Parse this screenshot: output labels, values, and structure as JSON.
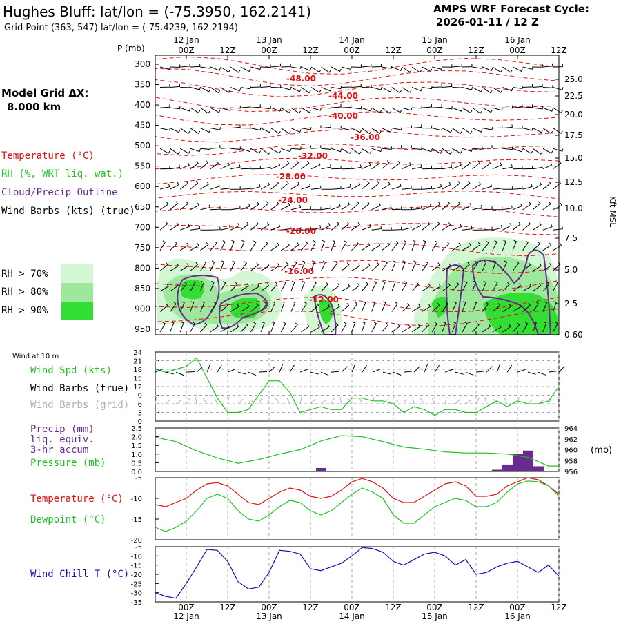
{
  "header": {
    "station_title": "Hughes Bluff:  lat/lon = (-75.3950, 162.2141)",
    "grid_point": "Grid Point (363, 547) lat/lon = (-75.4239, 162.2194)",
    "forecast_label": "AMPS WRF Forecast Cycle:",
    "cycle": "2026-01-11 / 12  Z"
  },
  "model_grid": {
    "label": "Model Grid ΔX:",
    "value": "8.000 km"
  },
  "time_axis": {
    "hour_labels": [
      "00Z",
      "12Z",
      "00Z",
      "12Z",
      "00Z",
      "12Z",
      "00Z",
      "12Z",
      "00Z",
      "12Z"
    ],
    "date_labels": [
      "12 Jan",
      "13 Jan",
      "14 Jan",
      "15 Jan",
      "16 Jan"
    ]
  },
  "colors": {
    "temperature": "#e01010",
    "rh": "#20c020",
    "cloud": "#6a2a90",
    "wind": "#000000",
    "wind_grid": "#b0b0b0",
    "pressure": "#20c020",
    "wind_chill": "#1010b0",
    "precip": "#6a2a90",
    "rh70": "#d2f7d2",
    "rh80": "#9ee89e",
    "rh90": "#33dd33"
  },
  "cross_section": {
    "ylabel": "P (mb)",
    "pressure_levels": [
      "300",
      "350",
      "400",
      "450",
      "500",
      "550",
      "600",
      "650",
      "700",
      "750",
      "800",
      "850",
      "900",
      "950"
    ],
    "height_label": "Kft MSL",
    "height_ticks": [
      "25.0",
      "22.5",
      "20.0",
      "17.5",
      "15.0",
      "12.5",
      "10.0",
      "7.5",
      "5.0",
      "2.5",
      "0.60"
    ],
    "temperature_labels": [
      "-48.00",
      "-44.00",
      "-40.00",
      "-36.00",
      "-32.00",
      "-28.00",
      "-24.00",
      "-20.00",
      "-16.00",
      "-12.00"
    ],
    "legend": {
      "temperature": "Temperature (°C)",
      "rh": "RH (%, WRT liq. wat.)",
      "cloud": "Cloud/Precip Outline",
      "wind": "Wind Barbs (kts) (true)",
      "rh70": "RH > 70%",
      "rh80": "RH > 80%",
      "rh90": "RH > 90%"
    }
  },
  "chart_data": [
    {
      "type": "line",
      "name": "wind10m",
      "title": "Wind at 10 m",
      "yticks": [
        "24",
        "21",
        "18",
        "15",
        "12",
        "9",
        "6",
        "3",
        "0"
      ],
      "ylim": [
        0,
        24
      ],
      "legend": {
        "speed": "Wind Spd (kts)",
        "barbs_true": "Wind Barbs (true)",
        "barbs_grid": "Wind Barbs (grid)"
      },
      "x_hours": [
        0,
        3,
        6,
        9,
        12,
        15,
        18,
        21,
        24,
        27,
        30,
        33,
        36,
        39,
        42,
        45,
        48,
        51,
        54,
        57,
        60,
        63,
        66,
        69,
        72,
        75,
        78,
        81,
        84,
        87,
        90,
        93,
        96,
        99,
        102,
        105,
        108,
        111,
        114,
        117
      ],
      "series": [
        {
          "values": [
            18,
            17,
            18,
            19,
            22,
            15,
            8,
            3,
            3,
            4,
            9,
            14,
            14,
            10,
            3,
            4,
            5,
            4,
            4,
            8,
            8,
            7,
            7,
            6,
            3,
            5,
            4,
            2,
            4,
            4,
            3,
            3,
            5,
            7,
            5,
            7,
            6,
            6,
            7,
            12
          ]
        }
      ]
    },
    {
      "type": "bar",
      "name": "precip",
      "legend": {
        "precip": "Precip (mm)",
        "liq": "liq. equiv.",
        "accum": "3-hr accum",
        "pressure": "Pressure (mb)"
      },
      "yticks_left": [
        "2.5",
        "2.0",
        "1.5",
        "1.0",
        "0.5",
        "0.0"
      ],
      "ylim": [
        0,
        2.5
      ],
      "yticks_right": [
        "964",
        "962",
        "960",
        "958",
        "956"
      ],
      "ylim_right": [
        956,
        964
      ],
      "right_unit": "(mb)",
      "bars": [
        {
          "x_hours": 48,
          "value": 0.2
        },
        {
          "x_hours": 99,
          "value": 0.1
        },
        {
          "x_hours": 102,
          "value": 0.4
        },
        {
          "x_hours": 105,
          "value": 1.0
        },
        {
          "x_hours": 108,
          "value": 1.2
        },
        {
          "x_hours": 111,
          "value": 0.3
        }
      ],
      "pressure_x_hours": [
        0,
        6,
        12,
        18,
        24,
        30,
        36,
        42,
        48,
        54,
        60,
        66,
        72,
        78,
        84,
        90,
        96,
        102,
        108,
        114,
        117
      ],
      "pressure_values": [
        962.3,
        961.5,
        959.8,
        958.5,
        957.5,
        958.2,
        959.2,
        960.0,
        961.6,
        962.6,
        962.4,
        961.5,
        960.5,
        960.1,
        959.6,
        959.4,
        959.4,
        959.2,
        958.6,
        957.0,
        957.0
      ]
    },
    {
      "type": "line",
      "name": "temperature",
      "legend": {
        "temp": "Temperature (°C)",
        "dew": "Dewpoint (°C)"
      },
      "yticks": [
        "-5",
        "-10",
        "-15",
        "-20"
      ],
      "ylim": [
        -20,
        -5
      ],
      "x_hours": [
        0,
        3,
        6,
        9,
        12,
        15,
        18,
        21,
        24,
        27,
        30,
        33,
        36,
        39,
        42,
        45,
        48,
        51,
        54,
        57,
        60,
        63,
        66,
        69,
        72,
        75,
        78,
        81,
        84,
        87,
        90,
        93,
        96,
        99,
        102,
        105,
        108,
        111,
        114,
        117
      ],
      "series": [
        {
          "name": "Temperature (°C)",
          "values": [
            -11.5,
            -12,
            -11,
            -10,
            -8,
            -6.5,
            -6.2,
            -7,
            -9,
            -11,
            -11.5,
            -10,
            -8.5,
            -7.5,
            -8,
            -9.5,
            -10,
            -9.5,
            -8,
            -6,
            -5.2,
            -6,
            -7.5,
            -10,
            -11,
            -11,
            -9.5,
            -8,
            -6.5,
            -6,
            -7,
            -9.5,
            -9.5,
            -9,
            -7,
            -6,
            -5,
            -5.5,
            -7,
            -9
          ]
        },
        {
          "name": "Dewpoint (°C)",
          "values": [
            -17,
            -18,
            -17,
            -15.5,
            -13,
            -10,
            -9,
            -10,
            -13,
            -15,
            -15.5,
            -14,
            -12,
            -10.5,
            -11,
            -13,
            -14,
            -13,
            -11,
            -9,
            -7.5,
            -8.5,
            -10,
            -14,
            -16,
            -16,
            -14,
            -12,
            -11,
            -10,
            -10.5,
            -12,
            -12,
            -11,
            -8.5,
            -6.5,
            -5.8,
            -6,
            -7,
            -9.5
          ]
        }
      ]
    },
    {
      "type": "line",
      "name": "windchill",
      "legend": {
        "chill": "Wind Chill T (°C)"
      },
      "yticks": [
        "-5",
        "-10",
        "-15",
        "-20",
        "-25",
        "-30",
        "-35"
      ],
      "ylim": [
        -35,
        -5
      ],
      "x_hours": [
        0,
        3,
        6,
        9,
        12,
        15,
        18,
        21,
        24,
        27,
        30,
        33,
        36,
        39,
        42,
        45,
        48,
        51,
        54,
        57,
        60,
        63,
        66,
        69,
        72,
        75,
        78,
        81,
        84,
        87,
        90,
        93,
        96,
        99,
        102,
        105,
        108,
        111,
        114,
        117
      ],
      "series": [
        {
          "values": [
            -30,
            -32,
            -33,
            -25,
            -16,
            -6.5,
            -7,
            -13,
            -24,
            -28,
            -27,
            -19,
            -7,
            -7.5,
            -9,
            -17,
            -18,
            -16,
            -14,
            -10,
            -5.5,
            -6,
            -8,
            -13,
            -15,
            -12,
            -9,
            -8,
            -10,
            -15,
            -12,
            -20,
            -19,
            -16,
            -14,
            -13,
            -16,
            -19,
            -15,
            -21
          ]
        }
      ]
    }
  ]
}
